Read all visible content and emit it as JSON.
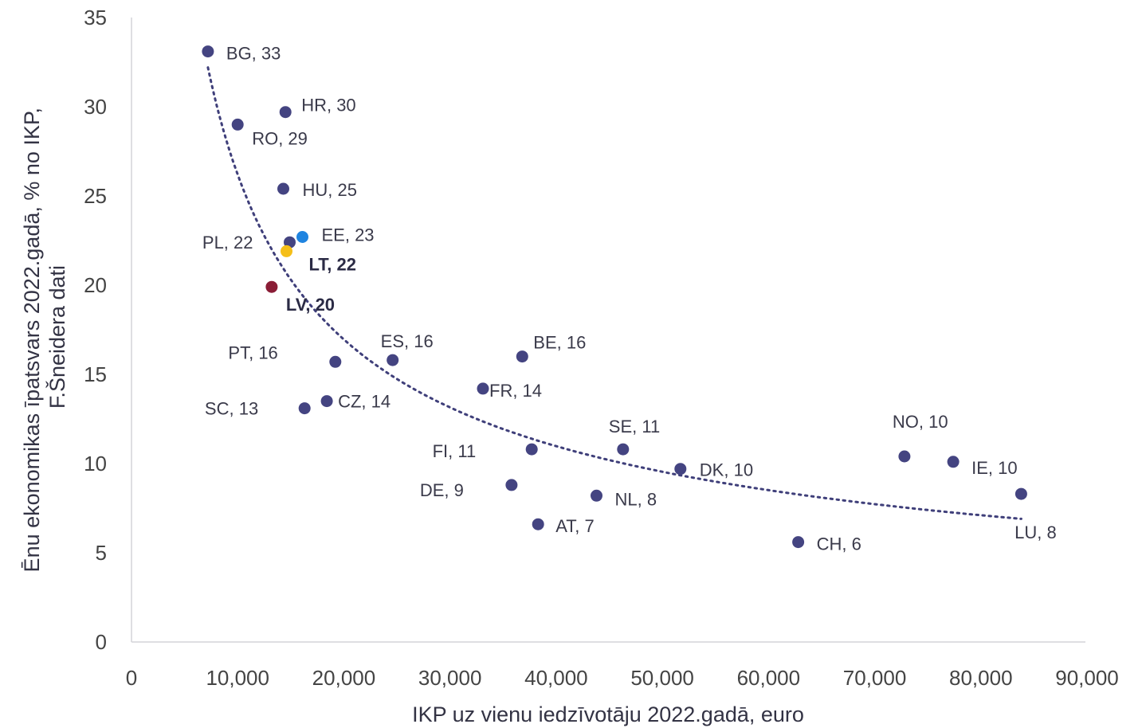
{
  "chart_data": {
    "type": "scatter",
    "title": "",
    "xlabel": "IKP uz vienu iedzīvotāju 2022.gadā, euro",
    "ylabel_lines": [
      "Ēnu ekonomikas īpatsvars 2022.gadā, % no IKP,",
      "F.Šneidera dati"
    ],
    "xlim": [
      0,
      90000
    ],
    "ylim": [
      0,
      35
    ],
    "xticks": [
      0,
      10000,
      20000,
      30000,
      40000,
      50000,
      60000,
      70000,
      80000,
      90000
    ],
    "xtick_labels": [
      "0",
      "10,000",
      "20,000",
      "30,000",
      "40,000",
      "50,000",
      "60,000",
      "70,000",
      "80,000",
      "90,000"
    ],
    "yticks": [
      0,
      5,
      10,
      15,
      20,
      25,
      30,
      35
    ],
    "ytick_labels": [
      "0",
      "5",
      "10",
      "15",
      "20",
      "25",
      "30",
      "35"
    ],
    "grid": false,
    "legend": "none",
    "trendline": {
      "style": "dotted",
      "shape": "power",
      "color": "#3f3f7a",
      "x_range": [
        7200,
        83800
      ],
      "start_y": 32.2,
      "end_y": 6.9
    },
    "points": [
      {
        "code": "BG",
        "x": 7200,
        "y": 33.1,
        "label": "BG, 33",
        "color": "#444481"
      },
      {
        "code": "RO",
        "x": 10000,
        "y": 29.0,
        "label": "RO, 29",
        "color": "#444481"
      },
      {
        "code": "HR",
        "x": 14500,
        "y": 29.7,
        "label": "HR, 30",
        "color": "#444481"
      },
      {
        "code": "HU",
        "x": 14300,
        "y": 25.4,
        "label": "HU, 25",
        "color": "#444481"
      },
      {
        "code": "PL",
        "x": 14900,
        "y": 22.4,
        "label": "PL, 22",
        "color": "#444481"
      },
      {
        "code": "EE",
        "x": 16100,
        "y": 22.7,
        "label": "EE, 23",
        "color": "#1f84e0"
      },
      {
        "code": "LT",
        "x": 14600,
        "y": 21.9,
        "label": "LT, 22",
        "color": "#f5bf19",
        "bold": true
      },
      {
        "code": "LV",
        "x": 13200,
        "y": 19.9,
        "label": "LV, 20",
        "color": "#8a1d36",
        "bold": true
      },
      {
        "code": "PT",
        "x": 19200,
        "y": 15.7,
        "label": "PT, 16",
        "color": "#444481"
      },
      {
        "code": "ES",
        "x": 24600,
        "y": 15.8,
        "label": "ES, 16",
        "color": "#444481"
      },
      {
        "code": "SC",
        "x": 16300,
        "y": 13.1,
        "label": "SC, 13",
        "color": "#444481"
      },
      {
        "code": "CZ",
        "x": 18400,
        "y": 13.5,
        "label": "CZ, 14",
        "color": "#444481"
      },
      {
        "code": "BE",
        "x": 36800,
        "y": 16.0,
        "label": "BE, 16",
        "color": "#444481"
      },
      {
        "code": "FR",
        "x": 33100,
        "y": 14.2,
        "label": "FR, 14",
        "color": "#444481"
      },
      {
        "code": "FI",
        "x": 37700,
        "y": 10.8,
        "label": "FI, 11",
        "color": "#444481"
      },
      {
        "code": "DE",
        "x": 35800,
        "y": 8.8,
        "label": "DE, 9",
        "color": "#444481"
      },
      {
        "code": "AT",
        "x": 38300,
        "y": 6.6,
        "label": "AT, 7",
        "color": "#444481"
      },
      {
        "code": "NL",
        "x": 43800,
        "y": 8.2,
        "label": "NL, 8",
        "color": "#444481"
      },
      {
        "code": "SE",
        "x": 46300,
        "y": 10.8,
        "label": "SE, 11",
        "color": "#444481"
      },
      {
        "code": "DK",
        "x": 51700,
        "y": 9.7,
        "label": "DK, 10",
        "color": "#444481"
      },
      {
        "code": "CH",
        "x": 62800,
        "y": 5.6,
        "label": "CH, 6",
        "color": "#444481"
      },
      {
        "code": "NO",
        "x": 72800,
        "y": 10.4,
        "label": "NO, 10",
        "color": "#444481"
      },
      {
        "code": "IE",
        "x": 77400,
        "y": 10.1,
        "label": "IE, 10",
        "color": "#444481"
      },
      {
        "code": "LU",
        "x": 83800,
        "y": 8.3,
        "label": "LU, 8",
        "color": "#444481"
      }
    ]
  }
}
